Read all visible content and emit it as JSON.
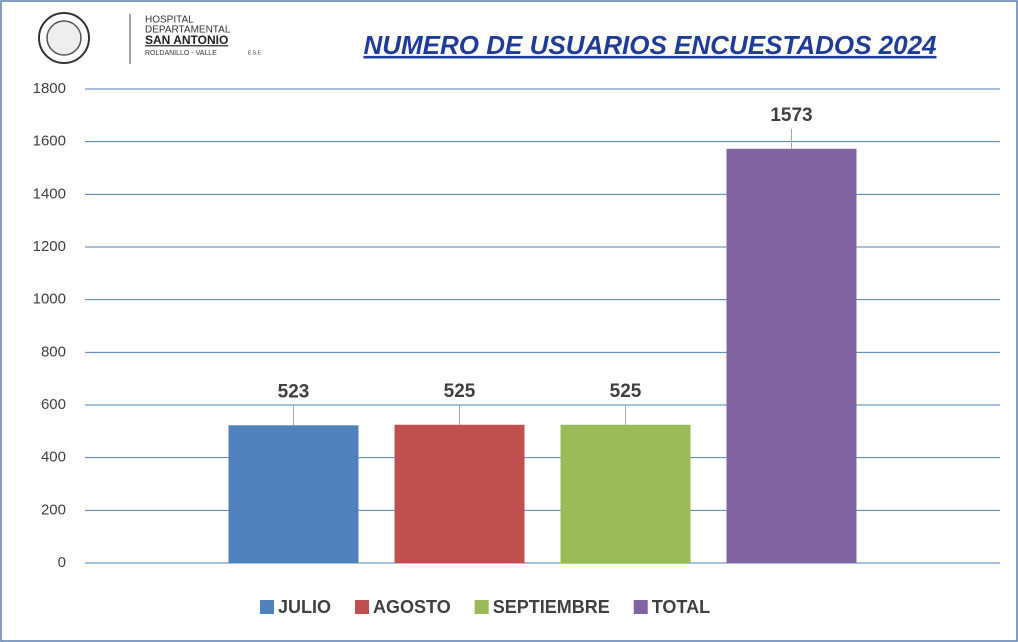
{
  "logo": {
    "line1": "HOSPITAL",
    "line2": "DEPARTAMENTAL",
    "line3": "SAN ANTONIO",
    "line4": "ROLDANILLO - VALLE",
    "line5": "E.S.E."
  },
  "chart_data": {
    "type": "bar",
    "title": "NUMERO DE USUARIOS ENCUESTADOS 2024",
    "categories": [
      null
    ],
    "series": [
      {
        "name": "JULIO",
        "color": "#4f81bd",
        "values": [
          523
        ]
      },
      {
        "name": "AGOSTO",
        "color": "#c0504d",
        "values": [
          525
        ]
      },
      {
        "name": "SEPTIEMBRE",
        "color": "#9bbb59",
        "values": [
          525
        ]
      },
      {
        "name": "TOTAL",
        "color": "#8064a2",
        "values": [
          1573
        ]
      }
    ],
    "ylim": [
      0,
      1800
    ],
    "yticks": [
      0,
      200,
      400,
      600,
      800,
      1000,
      1200,
      1400,
      1600,
      1800
    ],
    "grid": true,
    "legend": "bottom"
  }
}
